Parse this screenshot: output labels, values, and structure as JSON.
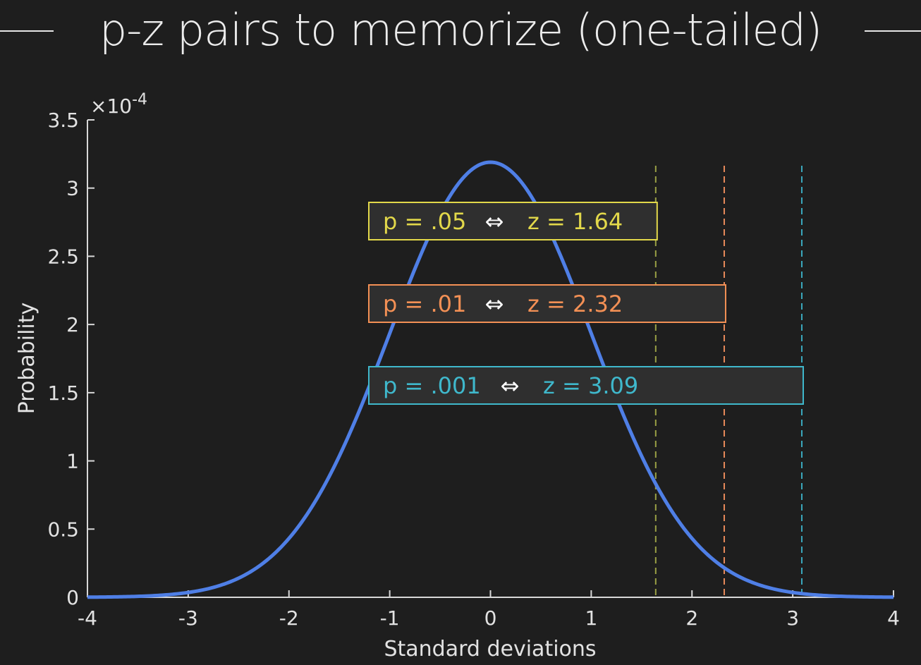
{
  "title": "p-z pairs to memorize (one-tailed)",
  "colors": {
    "background": "#1e1e1e",
    "curve": "#4f7fe6",
    "axis": "#d8d8d8",
    "text": "#e2e2e2",
    "box_fill": "#2f2f2f"
  },
  "chart_data": {
    "type": "line",
    "xlabel": "Standard deviations",
    "ylabel": "Probability",
    "y_exponent": "×10",
    "y_exponent_power": "-4",
    "xlim": [
      -4,
      4
    ],
    "ylim": [
      0,
      3.5
    ],
    "xticks": [
      -4,
      -3,
      -2,
      -1,
      0,
      1,
      2,
      3,
      4
    ],
    "yticks": [
      0,
      0.5,
      1,
      1.5,
      2,
      2.5,
      3,
      3.5
    ],
    "xtick_labels": [
      "-4",
      "-3",
      "-2",
      "-1",
      "0",
      "1",
      "2",
      "3",
      "4"
    ],
    "ytick_labels": [
      "0",
      "0.5",
      "1",
      "1.5",
      "2",
      "2.5",
      "3",
      "3.5"
    ],
    "series": [
      {
        "distribution": "normal",
        "mean": 0,
        "sd": 1,
        "peak": 3.19,
        "color": "#4f7fe6"
      }
    ],
    "thresholds": [
      {
        "p": "p = .05",
        "arrow": "⇔",
        "z_label": "z = 1.64",
        "z": 1.64,
        "color": "#e2d84a",
        "line_color": "#9aa045"
      },
      {
        "p": "p = .01",
        "arrow": "⇔",
        "z_label": "z = 2.32",
        "z": 2.32,
        "color": "#f39055",
        "line_color": "#e88a5a"
      },
      {
        "p": "p = .001",
        "arrow": "⇔",
        "z_label": "z = 3.09",
        "z": 3.09,
        "color": "#3fb8cc",
        "line_color": "#3aa8bd"
      }
    ],
    "grid": false
  }
}
